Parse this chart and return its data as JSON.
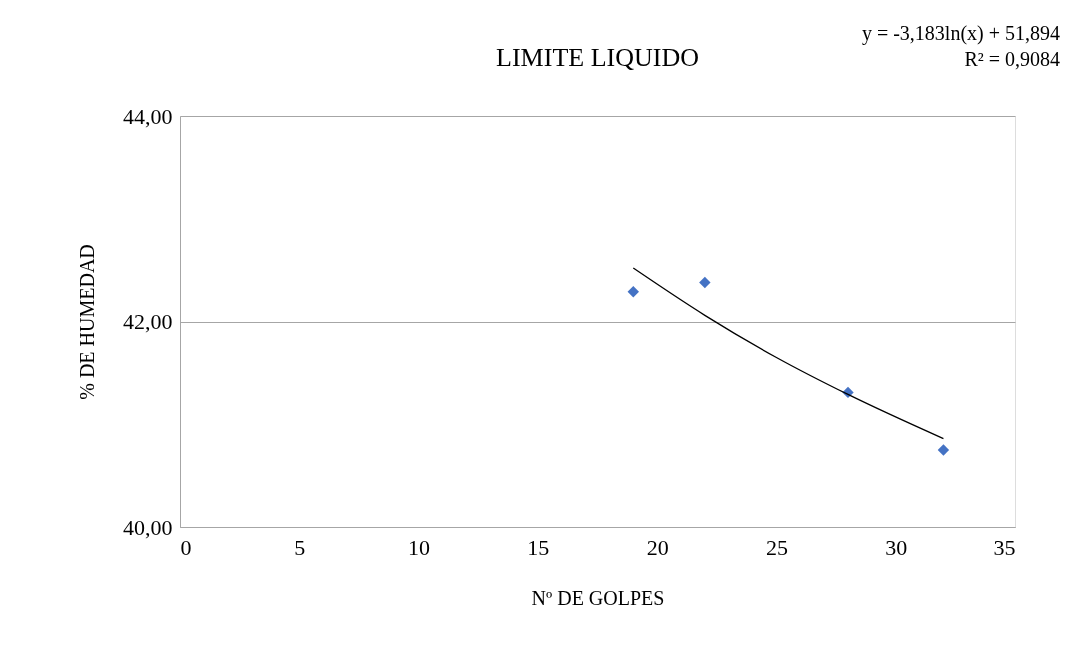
{
  "chart_data": {
    "type": "scatter",
    "title": "LIMITE LIQUIDO",
    "xlabel": "Nº DE GOLPES",
    "ylabel": "% DE HUMEDAD",
    "x": [
      19,
      22,
      28,
      32
    ],
    "series": [
      {
        "color": "#4472c4",
        "marker": "diamond",
        "values": [
          42.29,
          42.38,
          41.31,
          40.75
        ]
      },
      {
        "type": "line",
        "color": "#000000",
        "marker": "none",
        "line_style": "solid",
        "x": [
          19,
          22,
          25,
          28,
          32
        ],
        "values": [
          42.52,
          42.06,
          41.65,
          41.29,
          40.86
        ]
      }
    ],
    "xlim": [
      0,
      35
    ],
    "xticks": [
      0,
      5,
      10,
      15,
      20,
      25,
      30,
      35
    ],
    "ylim": [
      40,
      44
    ],
    "yticks": [
      {
        "value": 40,
        "label": "40,00"
      },
      {
        "value": 42,
        "label": "42,00"
      },
      {
        "value": 44,
        "label": "44,00"
      }
    ],
    "grid": "y",
    "annotations": [
      "y = -3,183ln(x) + 51,894",
      "R² = 0,9084"
    ]
  }
}
